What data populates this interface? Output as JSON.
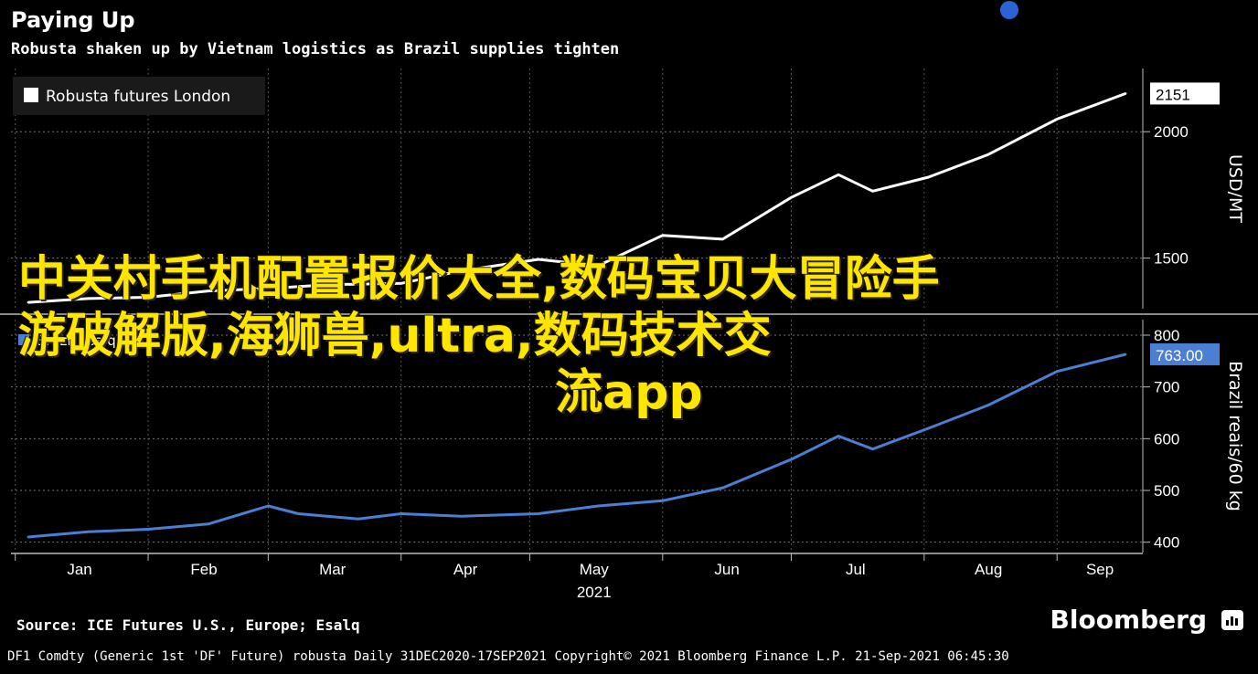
{
  "title": "Paying Up",
  "subtitle": "Robusta shaken up by Vietnam logistics as Brazil supplies tighten",
  "overlay_text": {
    "line1": "中关村手机配置报价大全,数码宝贝大冒险手",
    "line2": "游破解版,海狮兽,ultra,数码技术交",
    "line3": "流app"
  },
  "source": "Source: ICE Futures U.S., Europe; Esalq",
  "brand": "Bloomberg",
  "footer": "DF1 Comdty (Generic 1st 'DF' Future) robusta  Daily 31DEC2020-17SEP2021  Copyright© 2021 Bloomberg Finance L.P.  21-Sep-2021 06:45:30",
  "colors": {
    "background": "#000000",
    "robusta": "#ffffff",
    "brazil": "#4a7fd4",
    "overlay": "#ffe600"
  },
  "chart_data": [
    {
      "type": "line",
      "panel": "top",
      "legend": "top-left",
      "series": [
        {
          "name": "Robusta futures London",
          "x": [
            "2021-01-04",
            "2021-01-18",
            "2021-02-01",
            "2021-02-15",
            "2021-03-01",
            "2021-03-15",
            "2021-04-01",
            "2021-04-15",
            "2021-05-03",
            "2021-05-17",
            "2021-06-01",
            "2021-06-15",
            "2021-07-01",
            "2021-07-12",
            "2021-07-20",
            "2021-08-02",
            "2021-08-16",
            "2021-09-01",
            "2021-09-17"
          ],
          "values": [
            1325,
            1340,
            1345,
            1370,
            1380,
            1395,
            1400,
            1450,
            1495,
            1470,
            1590,
            1575,
            1740,
            1830,
            1765,
            1820,
            1910,
            2050,
            2151
          ]
        }
      ],
      "last_value_label": "2151",
      "ylabel": "USD/MT",
      "ylim": [
        1300,
        2250
      ],
      "yticks": [
        "1500",
        "2000"
      ],
      "grid": true
    },
    {
      "type": "line",
      "panel": "bottom",
      "legend": "top-left",
      "series": [
        {
          "name": "Brazil Esalq",
          "x": [
            "2021-01-04",
            "2021-01-18",
            "2021-02-01",
            "2021-02-15",
            "2021-03-01",
            "2021-03-08",
            "2021-03-22",
            "2021-04-01",
            "2021-04-15",
            "2021-05-03",
            "2021-05-17",
            "2021-06-01",
            "2021-06-15",
            "2021-07-01",
            "2021-07-12",
            "2021-07-20",
            "2021-08-02",
            "2021-08-16",
            "2021-09-01",
            "2021-09-17"
          ],
          "values": [
            410,
            420,
            425,
            435,
            470,
            455,
            445,
            455,
            450,
            455,
            470,
            480,
            505,
            560,
            605,
            580,
            620,
            665,
            730,
            763
          ]
        }
      ],
      "last_value_label": "763.00",
      "ylabel": "Brazil reais/60 kg",
      "ylim": [
        380,
        830
      ],
      "yticks": [
        "400",
        "500",
        "600",
        "700",
        "800"
      ],
      "grid": true
    }
  ],
  "x_axis": {
    "months": [
      "Jan",
      "Feb",
      "Mar",
      "Apr",
      "May",
      "Jun",
      "Jul",
      "Aug",
      "Sep"
    ],
    "year": "2021"
  }
}
